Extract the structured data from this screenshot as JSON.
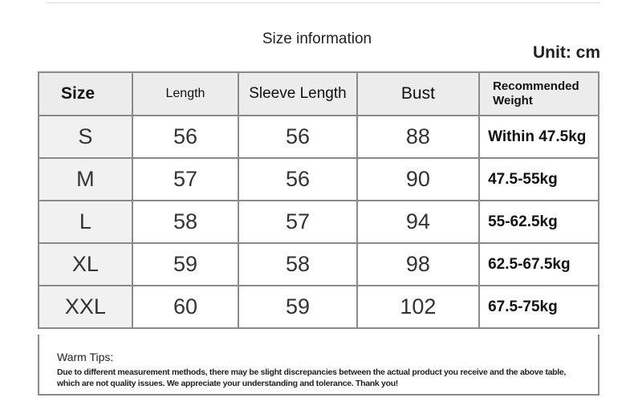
{
  "title": "Size information",
  "unit": "Unit: cm",
  "headers": [
    "Size",
    "Length",
    "Sleeve Length",
    "Bust",
    "Recommended Weight"
  ],
  "rows": [
    [
      "S",
      "56",
      "56",
      "88",
      "Within 47.5kg"
    ],
    [
      "M",
      "57",
      "56",
      "90",
      "47.5-55kg"
    ],
    [
      "L",
      "58",
      "57",
      "94",
      "55-62.5kg"
    ],
    [
      "XL",
      "59",
      "58",
      "98",
      "62.5-67.5kg"
    ],
    [
      "XXL",
      "60",
      "59",
      "102",
      "67.5-75kg"
    ]
  ],
  "tips": {
    "heading": "Warm Tips:",
    "body": "Due to different measurement methods, there may be slight discrepancies between the actual product you receive and the above table, which are not quality issues. We appreciate your understanding and tolerance. Thank you!"
  }
}
